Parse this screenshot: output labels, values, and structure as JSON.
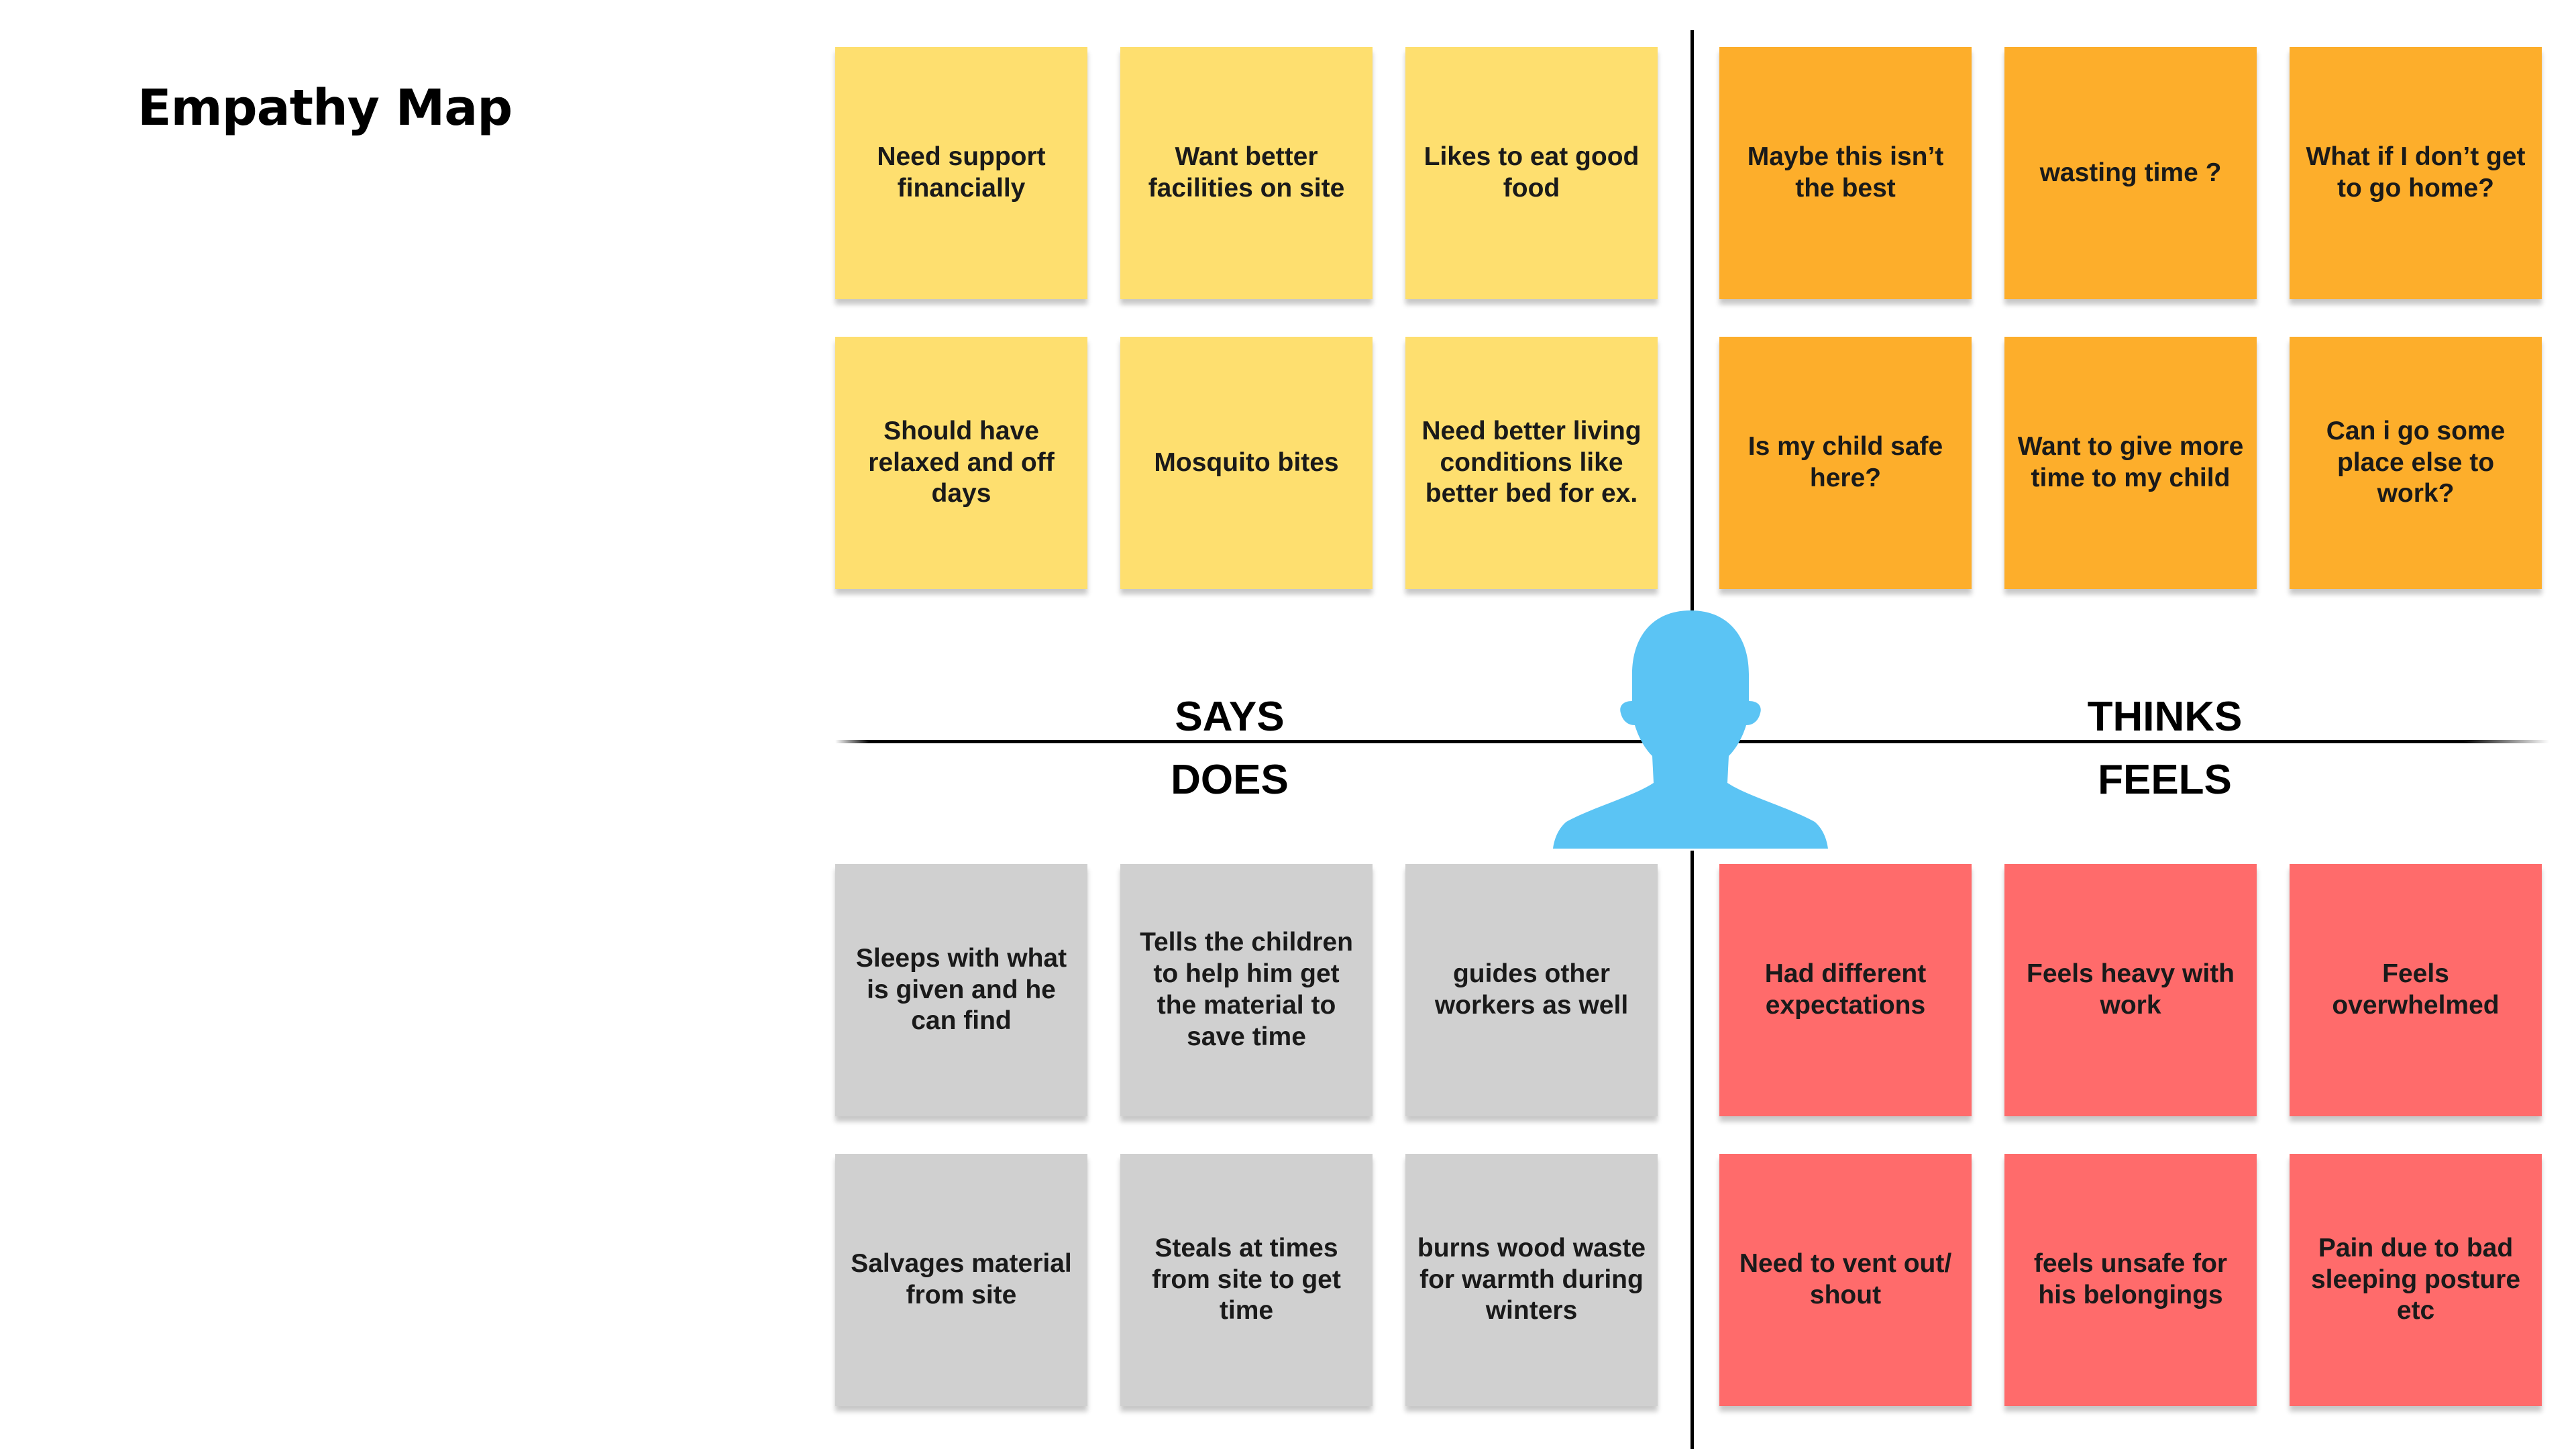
{
  "title": "Empathy Map",
  "quadrants": {
    "says": {
      "label": "SAYS",
      "color": "#fedf6f",
      "notes": [
        "Need support financially",
        "Want better facilities on site",
        "Likes to eat good food",
        "Should have relaxed and off days",
        "Mosquito bites",
        "Need better living conditions like better bed for ex."
      ]
    },
    "thinks": {
      "label": "THINKS",
      "color": "#fdae2b",
      "notes": [
        "Maybe this isn’t the best",
        "wasting time ?",
        "What if I don’t get to go home?",
        "Is my child safe here?",
        "Want to give more time to my child",
        "Can i go some place else to work?"
      ]
    },
    "does": {
      "label": "DOES",
      "color": "#d0d0d0",
      "notes": [
        "Sleeps with what is given and he can find",
        "Tells the children to help him get the material to save time",
        "guides other workers as well",
        "Salvages material from site",
        "Steals at times from site to get time",
        "burns wood waste for warmth during winters"
      ]
    },
    "feels": {
      "label": "FEELS",
      "color": "#ff6b6b",
      "notes": [
        "Had different expectations",
        "Feels heavy with work",
        "Feels overwhelmed",
        "Need to vent out/ shout",
        "feels unsafe for his belongings",
        "Pain due to bad sleeping posture etc"
      ]
    }
  },
  "persona_icon": "person-silhouette-icon",
  "persona_color": "#5bc4f4"
}
